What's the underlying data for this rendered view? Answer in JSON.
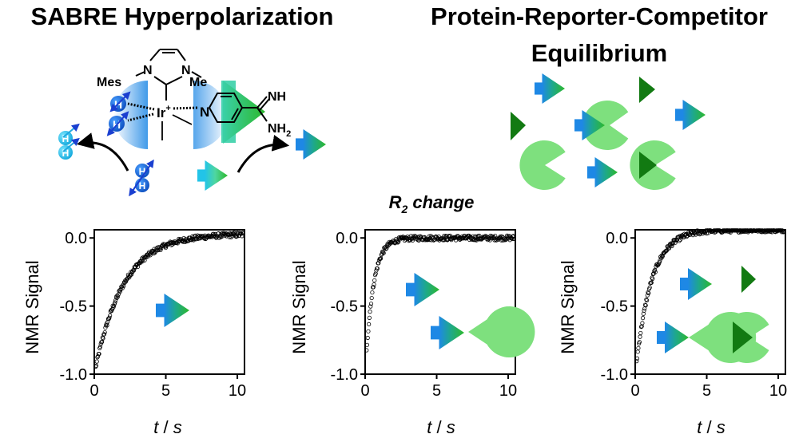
{
  "titles": {
    "left": "SABRE Hyperpolarization",
    "right_line1": "Protein-Reporter-Competitor",
    "right_line2": "Equilibrium",
    "center": "R",
    "center_sub": "2",
    "center_suffix": " change"
  },
  "molecule": {
    "mes": "Mes",
    "n1": "N",
    "n2": "N",
    "me": "Me",
    "ir": "Ir",
    "ir_charge": "+",
    "h1": "H",
    "h2": "H",
    "n_pyr": "N",
    "nh": "NH",
    "nh2": "NH",
    "nh2_sub": "2",
    "free_h_top": "H",
    "free_h_bottom": "H",
    "out_h_top": "H",
    "out_h_bottom": "H"
  },
  "colors": {
    "reporter_blue": "#1e88e5",
    "reporter_green": "#2db82d",
    "competitor": "#127a12",
    "protein": "#7ee07e",
    "proton": "#1e6fe0",
    "proton_light": "#20c8f0",
    "curve": "#000000"
  },
  "chart_data": [
    {
      "type": "scatter",
      "title": "",
      "xlabel_italic": "t",
      "xlabel_rest": " / ",
      "xlabel_unit": "s",
      "ylabel": "NMR Signal",
      "xlim": [
        0,
        10.5
      ],
      "ylim": [
        -1.0,
        0.06
      ],
      "xticks": [
        0,
        5,
        10
      ],
      "xtick_labels": [
        "0",
        "5",
        "10"
      ],
      "yticks": [
        0.0,
        -0.5,
        -1.0
      ],
      "ytick_labels": [
        "0.0",
        "-0.5",
        "-1.0"
      ],
      "series": [
        {
          "name": "reporter only",
          "tau": 2.0,
          "y0": -1.0,
          "y_inf": 0.03,
          "x_start": 0.1,
          "x_end": 10.4
        }
      ]
    },
    {
      "type": "scatter",
      "title": "",
      "xlabel_italic": "t",
      "xlabel_rest": " / ",
      "xlabel_unit": "s",
      "ylabel": "NMR Signal",
      "xlim": [
        0,
        10.5
      ],
      "ylim": [
        -1.0,
        0.06
      ],
      "xticks": [
        0,
        5,
        10
      ],
      "xtick_labels": [
        "0",
        "5",
        "10"
      ],
      "yticks": [
        0.0,
        -0.5,
        -1.0
      ],
      "ytick_labels": [
        "0.0",
        "-0.5",
        "-1.0"
      ],
      "series": [
        {
          "name": "reporter + protein",
          "tau": 0.55,
          "y0": -1.0,
          "y_inf": 0.0,
          "x_start": 0.1,
          "x_end": 10.4
        }
      ]
    },
    {
      "type": "scatter",
      "title": "",
      "xlabel_italic": "t",
      "xlabel_rest": " / ",
      "xlabel_unit": "s",
      "ylabel": "NMR Signal",
      "xlim": [
        0,
        10.5
      ],
      "ylim": [
        -1.0,
        0.06
      ],
      "xticks": [
        0,
        5,
        10
      ],
      "xtick_labels": [
        "0",
        "5",
        "10"
      ],
      "yticks": [
        0.0,
        -0.5,
        -1.0
      ],
      "ytick_labels": [
        "0.0",
        "-0.5",
        "-1.0"
      ],
      "series": [
        {
          "name": "reporter + protein + competitor",
          "tau": 1.1,
          "y0": -1.0,
          "y_inf": 0.06,
          "x_start": 0.1,
          "x_end": 10.4
        }
      ]
    }
  ]
}
